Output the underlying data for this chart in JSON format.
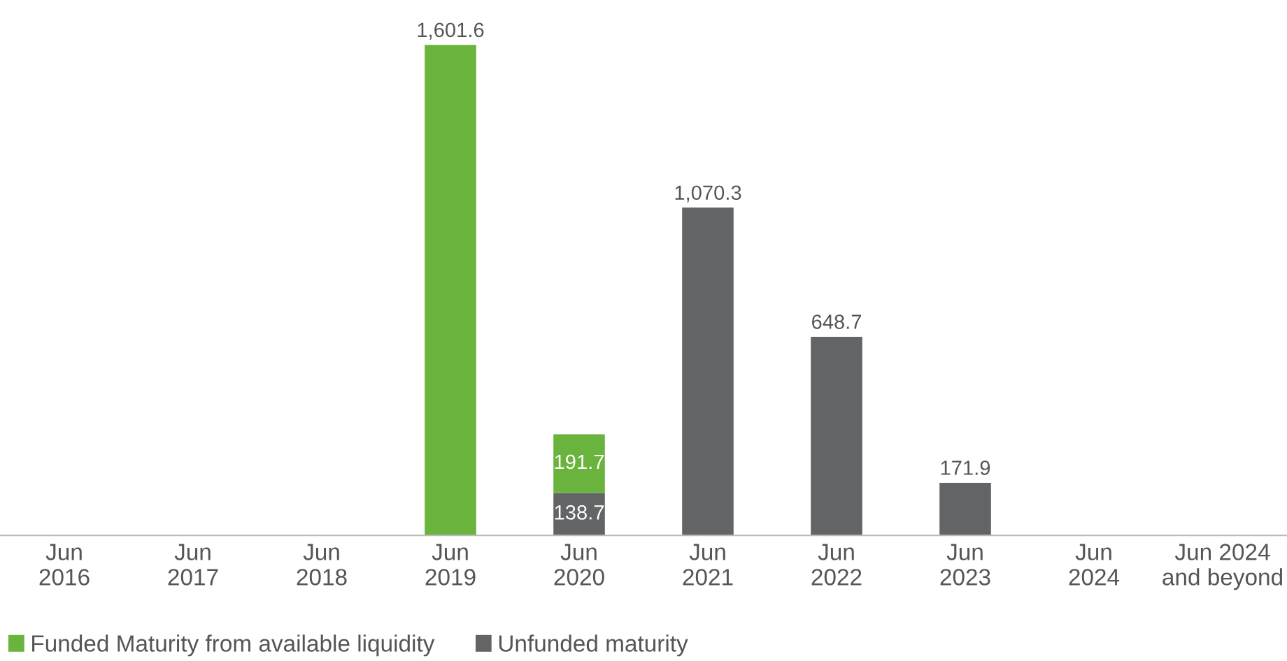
{
  "chart_data": {
    "type": "bar",
    "stacked": true,
    "legend": "bottom left",
    "grid": false,
    "categories": [
      "Jun\n2016",
      "Jun\n2017",
      "Jun\n2018",
      "Jun\n2019",
      "Jun\n2020",
      "Jun\n2021",
      "Jun\n2022",
      "Jun\n2023",
      "Jun\n2024",
      "Jun 2024\nand beyond"
    ],
    "series": [
      {
        "name": "Unfunded maturity",
        "color": "#636466",
        "values": [
          null,
          null,
          null,
          null,
          138.7,
          1070.3,
          648.7,
          171.9,
          null,
          null
        ],
        "value_labels": [
          null,
          null,
          null,
          null,
          "138.7",
          "1,070.3",
          "648.7",
          "171.9",
          null,
          null
        ]
      },
      {
        "name": "Funded Maturity from available liquidity",
        "color": "#6ab43e",
        "values": [
          null,
          null,
          null,
          1601.6,
          191.7,
          null,
          null,
          null,
          null,
          null
        ],
        "value_labels": [
          null,
          null,
          null,
          "1,601.6",
          "191.7",
          null,
          null,
          null,
          null,
          null
        ]
      }
    ]
  }
}
